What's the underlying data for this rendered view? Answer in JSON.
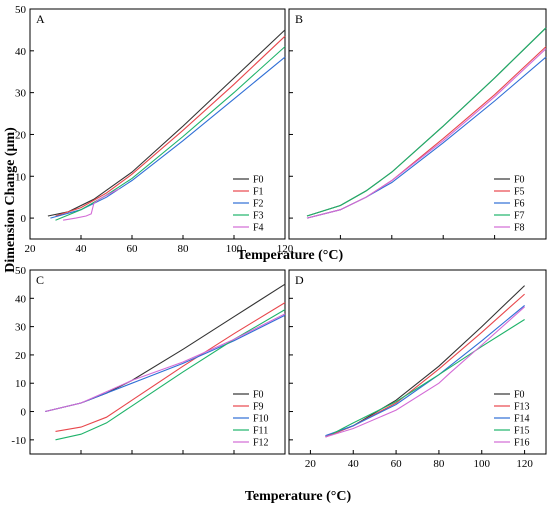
{
  "figure": {
    "ylabel": "Dimension Change (μm)",
    "xlabel_top": "Temperature (°C)",
    "xlabel_bottom": "Temperature (°C)"
  },
  "chart_data": [
    {
      "type": "line",
      "panel": "A",
      "xlim": [
        20,
        120
      ],
      "ylim": [
        -5,
        50
      ],
      "xticks": [
        20,
        40,
        60,
        80,
        100,
        120
      ],
      "yticks": [
        0,
        10,
        20,
        30,
        40,
        50
      ],
      "show_x_ticklabels": true,
      "show_y_ticklabels": true,
      "legend": "bottom-right",
      "series": [
        {
          "name": "F0",
          "color": "#333333",
          "points": [
            [
              27,
              0.5
            ],
            [
              35,
              1.5
            ],
            [
              45,
              4.5
            ],
            [
              60,
              11
            ],
            [
              80,
              22
            ],
            [
              100,
              33.5
            ],
            [
              120,
              45
            ]
          ]
        },
        {
          "name": "F1",
          "color": "#e8474c",
          "points": [
            [
              30,
              0.5
            ],
            [
              40,
              2.5
            ],
            [
              50,
              6
            ],
            [
              60,
              10.5
            ],
            [
              80,
              21
            ],
            [
              100,
              32
            ],
            [
              120,
              43.5
            ]
          ]
        },
        {
          "name": "F2",
          "color": "#2f6fd6",
          "points": [
            [
              28,
              0
            ],
            [
              40,
              2
            ],
            [
              50,
              5
            ],
            [
              60,
              9
            ],
            [
              80,
              18.5
            ],
            [
              100,
              28.5
            ],
            [
              120,
              38.5
            ]
          ]
        },
        {
          "name": "F3",
          "color": "#1fb36a",
          "points": [
            [
              30,
              -0.5
            ],
            [
              40,
              2
            ],
            [
              50,
              5.5
            ],
            [
              60,
              9.5
            ],
            [
              80,
              19.5
            ],
            [
              100,
              30
            ],
            [
              120,
              41
            ]
          ]
        },
        {
          "name": "F4",
          "color": "#d36bd6",
          "points": [
            [
              33,
              -0.5
            ],
            [
              38,
              0
            ],
            [
              42,
              0.5
            ],
            [
              44,
              1
            ],
            [
              45,
              3.5
            ],
            [
              47,
              4.5
            ],
            [
              55,
              7
            ]
          ]
        }
      ]
    },
    {
      "type": "line",
      "panel": "B",
      "xlim": [
        20,
        120
      ],
      "ylim": [
        -5,
        50
      ],
      "xticks": [
        20,
        40,
        60,
        80,
        100,
        120
      ],
      "yticks": [
        0,
        10,
        20,
        30,
        40,
        50
      ],
      "show_x_ticklabels": false,
      "show_y_ticklabels": false,
      "legend": "bottom-right",
      "series": [
        {
          "name": "F0",
          "color": "#333333",
          "points": [
            [
              27,
              0.5
            ],
            [
              40,
              3
            ],
            [
              50,
              6.5
            ],
            [
              60,
              11
            ],
            [
              80,
              22
            ],
            [
              100,
              33.5
            ],
            [
              120,
              45.5
            ]
          ]
        },
        {
          "name": "F5",
          "color": "#e8474c",
          "points": [
            [
              27,
              0
            ],
            [
              40,
              2
            ],
            [
              50,
              5
            ],
            [
              60,
              9
            ],
            [
              80,
              19
            ],
            [
              100,
              29.5
            ],
            [
              120,
              41
            ]
          ]
        },
        {
          "name": "F6",
          "color": "#2f6fd6",
          "points": [
            [
              27,
              0
            ],
            [
              40,
              2
            ],
            [
              50,
              5
            ],
            [
              60,
              8.5
            ],
            [
              80,
              18
            ],
            [
              100,
              28
            ],
            [
              120,
              38.5
            ]
          ]
        },
        {
          "name": "F7",
          "color": "#1fb36a",
          "points": [
            [
              27,
              0.5
            ],
            [
              40,
              3
            ],
            [
              50,
              6.5
            ],
            [
              60,
              11
            ],
            [
              80,
              22
            ],
            [
              100,
              33.5
            ],
            [
              120,
              45.5
            ]
          ]
        },
        {
          "name": "F8",
          "color": "#d36bd6",
          "points": [
            [
              27,
              0
            ],
            [
              40,
              2
            ],
            [
              50,
              5
            ],
            [
              60,
              9
            ],
            [
              80,
              18.5
            ],
            [
              100,
              29
            ],
            [
              120,
              40.5
            ]
          ]
        }
      ]
    },
    {
      "type": "line",
      "panel": "C",
      "xlim": [
        20,
        120
      ],
      "ylim": [
        -15,
        50
      ],
      "xticks": [
        20,
        40,
        60,
        80,
        100,
        120
      ],
      "yticks": [
        -10,
        0,
        10,
        20,
        30,
        40,
        50
      ],
      "show_x_ticklabels": false,
      "show_y_ticklabels": true,
      "legend": "bottom-right",
      "series": [
        {
          "name": "F0",
          "color": "#333333",
          "points": [
            [
              26,
              0
            ],
            [
              40,
              3
            ],
            [
              50,
              6.5
            ],
            [
              60,
              11
            ],
            [
              80,
              22
            ],
            [
              100,
              33.5
            ],
            [
              120,
              45
            ]
          ]
        },
        {
          "name": "F9",
          "color": "#e8474c",
          "points": [
            [
              30,
              -7
            ],
            [
              40,
              -5.5
            ],
            [
              50,
              -2
            ],
            [
              60,
              4
            ],
            [
              80,
              16
            ],
            [
              100,
              27.5
            ],
            [
              120,
              38.5
            ]
          ]
        },
        {
          "name": "F10",
          "color": "#2f6fd6",
          "points": [
            [
              26,
              0
            ],
            [
              40,
              3
            ],
            [
              50,
              6.5
            ],
            [
              60,
              10
            ],
            [
              80,
              17
            ],
            [
              100,
              25
            ],
            [
              120,
              34
            ]
          ]
        },
        {
          "name": "F11",
          "color": "#1fb36a",
          "points": [
            [
              30,
              -10
            ],
            [
              40,
              -8
            ],
            [
              50,
              -4
            ],
            [
              60,
              2
            ],
            [
              80,
              14
            ],
            [
              100,
              25.5
            ],
            [
              120,
              36
            ]
          ]
        },
        {
          "name": "F12",
          "color": "#d36bd6",
          "points": [
            [
              26,
              0
            ],
            [
              40,
              3
            ],
            [
              50,
              7
            ],
            [
              60,
              11
            ],
            [
              80,
              17.5
            ],
            [
              100,
              25.5
            ],
            [
              120,
              34.5
            ]
          ]
        }
      ]
    },
    {
      "type": "line",
      "panel": "D",
      "xlim": [
        10,
        130
      ],
      "ylim": [
        -15,
        50
      ],
      "xticks": [
        20,
        40,
        60,
        80,
        100,
        120
      ],
      "yticks": [
        -10,
        0,
        10,
        20,
        30,
        40,
        50
      ],
      "show_x_ticklabels": true,
      "show_y_ticklabels": false,
      "legend": "bottom-right",
      "series": [
        {
          "name": "F0",
          "color": "#333333",
          "points": [
            [
              27,
              -9
            ],
            [
              40,
              -5
            ],
            [
              60,
              4
            ],
            [
              80,
              16
            ],
            [
              100,
              30
            ],
            [
              120,
              44.5
            ]
          ]
        },
        {
          "name": "F13",
          "color": "#e8474c",
          "points": [
            [
              27,
              -9
            ],
            [
              40,
              -5
            ],
            [
              60,
              3
            ],
            [
              80,
              15
            ],
            [
              100,
              28
            ],
            [
              120,
              41.5
            ]
          ]
        },
        {
          "name": "F14",
          "color": "#2f6fd6",
          "points": [
            [
              27,
              -8.5
            ],
            [
              40,
              -5
            ],
            [
              60,
              2.5
            ],
            [
              80,
              13
            ],
            [
              100,
              25
            ],
            [
              120,
              37.5
            ]
          ]
        },
        {
          "name": "F15",
          "color": "#1fb36a",
          "points": [
            [
              30,
              -8
            ],
            [
              35,
              -6
            ],
            [
              40,
              -4
            ],
            [
              60,
              3.5
            ],
            [
              80,
              13
            ],
            [
              100,
              23
            ],
            [
              120,
              32.5
            ]
          ]
        },
        {
          "name": "F16",
          "color": "#d36bd6",
          "points": [
            [
              27,
              -9
            ],
            [
              40,
              -6
            ],
            [
              60,
              0.5
            ],
            [
              80,
              10
            ],
            [
              85,
              13.5
            ],
            [
              100,
              23.5
            ],
            [
              120,
              37
            ]
          ]
        }
      ]
    }
  ]
}
